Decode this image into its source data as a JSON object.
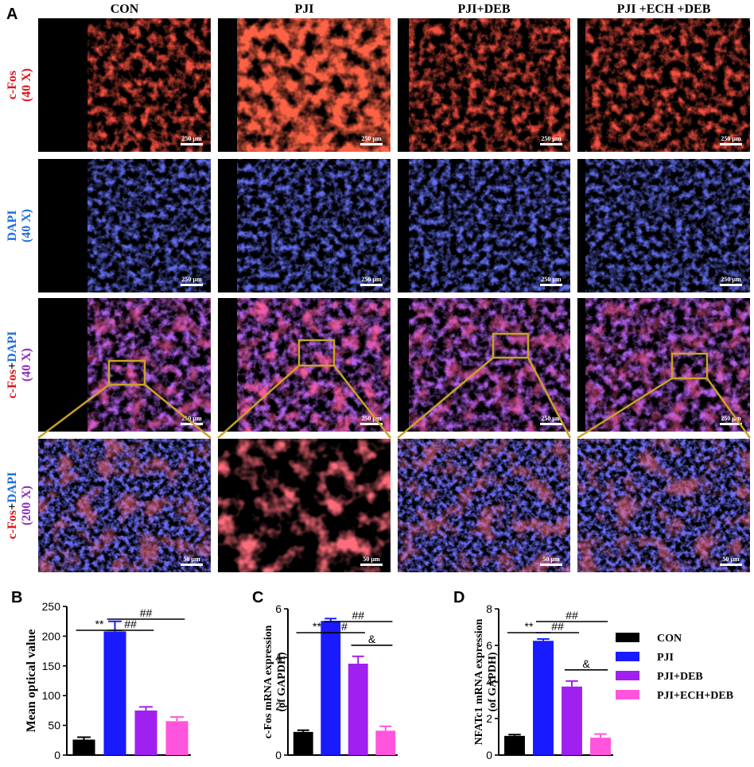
{
  "panels": {
    "a": "A",
    "b": "B",
    "c": "C",
    "d": "D"
  },
  "columns": [
    "CON",
    "PJI",
    "PJI+DEB",
    "PJI +ECH +DEB"
  ],
  "rows": [
    {
      "stain": "c-Fos",
      "mag": "(40 X)",
      "scale_bar": "250 µm"
    },
    {
      "stain": "DAPI",
      "mag": "(40 X)",
      "scale_bar": "250 µm"
    },
    {
      "stain": "c-Fos+DAPI",
      "mag": "(40 X)",
      "scale_bar": "250 µm"
    },
    {
      "stain": "c-Fos+DAPI",
      "mag": "(200 X)",
      "scale_bar": "50 µm"
    }
  ],
  "colors": {
    "cfos": "#e0141c",
    "dapi": "#1f6fe0",
    "merge": "#8e2bb8",
    "zoom_box": "#c9a227",
    "con": "#000000",
    "pji": "#1a1aff",
    "pji_deb": "#a020f0",
    "pji_ech_deb": "#ff55dd"
  },
  "legend": [
    "CON",
    "PJI",
    "PJI+DEB",
    "PJI+ECH+DEB"
  ],
  "chart_data": [
    {
      "type": "bar",
      "panel": "B",
      "ylabel": "Mean optical value",
      "categories": [
        "CON",
        "PJI",
        "PJI+DEB",
        "PJI+ECH+DEB"
      ],
      "values": [
        26,
        208,
        75,
        57
      ],
      "errors": [
        4,
        17,
        6,
        7
      ],
      "ylim": [
        0,
        250
      ],
      "yticks": [
        0,
        50,
        100,
        150,
        200,
        250
      ],
      "significance": [
        {
          "from": 0,
          "to": 1,
          "label": "**"
        },
        {
          "from": 1,
          "to": 2,
          "label": "##"
        },
        {
          "from": 1,
          "to": 3,
          "label": "##"
        }
      ]
    },
    {
      "type": "bar",
      "panel": "C",
      "ylabel": "c-Fos mRNA expression (of GAPDH)",
      "categories": [
        "CON",
        "PJI",
        "PJI+DEB",
        "PJI+ECH+DEB"
      ],
      "values": [
        0.95,
        5.5,
        3.75,
        1.0
      ],
      "errors": [
        0.07,
        0.1,
        0.3,
        0.18
      ],
      "ylim": [
        0,
        6
      ],
      "yticks": [
        0,
        2,
        4,
        6
      ],
      "significance": [
        {
          "from": 0,
          "to": 1,
          "label": "**"
        },
        {
          "from": 1,
          "to": 2,
          "label": "#"
        },
        {
          "from": 1,
          "to": 3,
          "label": "##"
        },
        {
          "from": 2,
          "to": 3,
          "label": "&"
        }
      ]
    },
    {
      "type": "bar",
      "panel": "D",
      "ylabel": "NFATc1 mRNA expression (of GAPDH)",
      "categories": [
        "CON",
        "PJI",
        "PJI+DEB",
        "PJI+ECH+DEB"
      ],
      "values": [
        1.05,
        6.25,
        3.75,
        0.95
      ],
      "errors": [
        0.07,
        0.1,
        0.3,
        0.2
      ],
      "ylim": [
        0,
        8
      ],
      "yticks": [
        0,
        2,
        4,
        6,
        8
      ],
      "significance": [
        {
          "from": 0,
          "to": 1,
          "label": "**"
        },
        {
          "from": 1,
          "to": 2,
          "label": "##"
        },
        {
          "from": 1,
          "to": 3,
          "label": "##"
        },
        {
          "from": 2,
          "to": 3,
          "label": "&"
        }
      ]
    }
  ]
}
